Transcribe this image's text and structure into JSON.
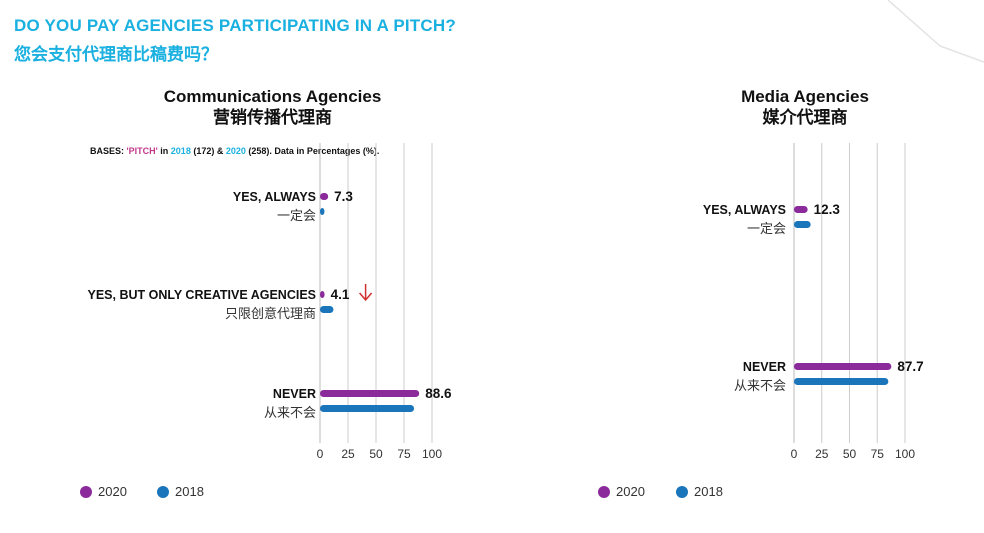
{
  "header": {
    "title_en": "DO YOU PAY AGENCIES PARTICIPATING IN A PITCH?",
    "title_zh": "您会支付代理商比稿费吗？"
  },
  "bases": {
    "prefix": "BASES: ",
    "pitch": "'PITCH'",
    "in": " in ",
    "y2018": "2018",
    "n2018": " (172) & ",
    "y2020": "2020",
    "n2020": " (258). Data in Percentages (%)."
  },
  "legend": {
    "s2020": "2020",
    "s2018": "2018"
  },
  "colors": {
    "s2020": "#8b2a9b",
    "s2018": "#1b75bb",
    "accent": "#1ab0e0",
    "arrow": "#d0312d",
    "grid": "#cccccc"
  },
  "chart_data": [
    {
      "type": "bar",
      "title": "Communications Agencies",
      "subtitle": "营销传播代理商",
      "categories": [
        {
          "en": "YES, ALWAYS",
          "zh": "一定会"
        },
        {
          "en": "YES, BUT ONLY CREATIVE AGENCIES",
          "zh": "只限创意代理商"
        },
        {
          "en": "NEVER",
          "zh": "从来不会"
        }
      ],
      "series": [
        {
          "name": "2020",
          "values": [
            7.3,
            4.1,
            88.6
          ],
          "labels": [
            "7.3",
            "4.1",
            "88.6"
          ]
        },
        {
          "name": "2018",
          "values": [
            4,
            12,
            84
          ]
        }
      ],
      "xticks": [
        "0",
        "25",
        "50",
        "75",
        "100"
      ],
      "xlim": [
        0,
        100
      ],
      "annotation": {
        "category_index": 1,
        "symbol": "down-arrow"
      },
      "grid": true
    },
    {
      "type": "bar",
      "title": "Media Agencies",
      "subtitle": "媒介代理商",
      "categories": [
        {
          "en": "YES, ALWAYS",
          "zh": "一定会"
        },
        {
          "en": "NEVER",
          "zh": "从来不会"
        }
      ],
      "series": [
        {
          "name": "2020",
          "values": [
            12.3,
            87.7
          ],
          "labels": [
            "12.3",
            "87.7"
          ]
        },
        {
          "name": "2018",
          "values": [
            15,
            85
          ]
        }
      ],
      "xticks": [
        "0",
        "25",
        "50",
        "75",
        "100"
      ],
      "xlim": [
        0,
        100
      ],
      "grid": true
    }
  ]
}
